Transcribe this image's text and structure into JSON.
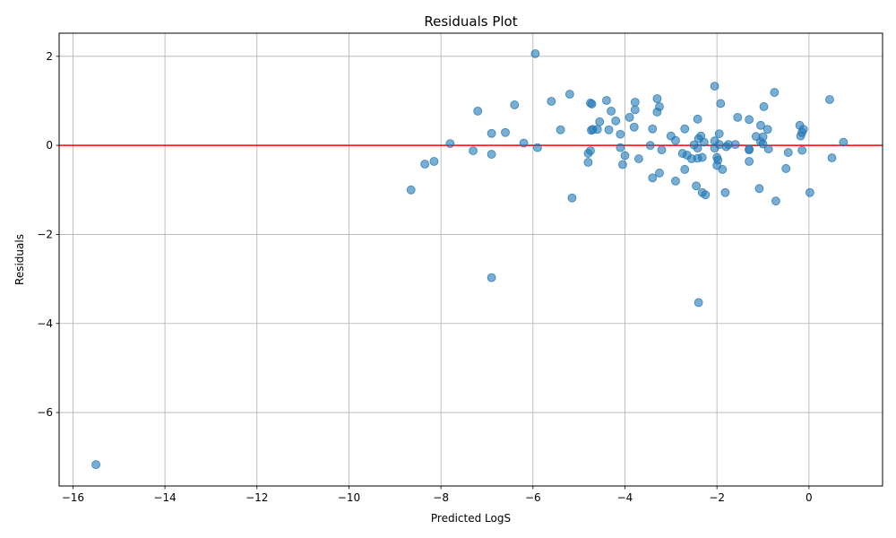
{
  "chart_data": {
    "type": "scatter",
    "title": "Residuals Plot",
    "xlabel": "Predicted LogS",
    "ylabel": "Residuals",
    "xlim": [
      -16.3,
      1.6
    ],
    "ylim": [
      -7.65,
      2.52
    ],
    "xticks": [
      -16,
      -14,
      -12,
      -10,
      -8,
      -6,
      -4,
      -2,
      0
    ],
    "yticks": [
      -6,
      -4,
      -2,
      0,
      2
    ],
    "grid": true,
    "point_color": "#1f77b4",
    "point_alpha": 0.6,
    "reference_line": {
      "y": 0,
      "color": "#ff0000"
    },
    "points": [
      [
        -15.5,
        -7.17
      ],
      [
        -8.65,
        -1.0
      ],
      [
        -8.35,
        -0.42
      ],
      [
        -8.15,
        -0.36
      ],
      [
        -7.8,
        0.04
      ],
      [
        -7.3,
        -0.12
      ],
      [
        -7.2,
        0.77
      ],
      [
        -6.9,
        0.27
      ],
      [
        -6.9,
        -0.2
      ],
      [
        -6.9,
        -2.97
      ],
      [
        -6.6,
        0.29
      ],
      [
        -6.4,
        0.91
      ],
      [
        -6.2,
        0.05
      ],
      [
        -5.95,
        2.06
      ],
      [
        -5.9,
        -0.05
      ],
      [
        -5.6,
        0.99
      ],
      [
        -5.4,
        0.35
      ],
      [
        -5.2,
        1.15
      ],
      [
        -5.15,
        -1.18
      ],
      [
        -4.8,
        -0.18
      ],
      [
        -4.8,
        -0.38
      ],
      [
        -4.75,
        -0.12
      ],
      [
        -4.75,
        0.95
      ],
      [
        -4.72,
        0.93
      ],
      [
        -4.73,
        0.34
      ],
      [
        -4.7,
        0.36
      ],
      [
        -4.6,
        0.36
      ],
      [
        -4.55,
        0.53
      ],
      [
        -4.4,
        1.01
      ],
      [
        -4.35,
        0.35
      ],
      [
        -4.3,
        0.77
      ],
      [
        -4.2,
        0.55
      ],
      [
        -4.1,
        0.25
      ],
      [
        -4.1,
        -0.05
      ],
      [
        -4.05,
        -0.43
      ],
      [
        -4.0,
        -0.23
      ],
      [
        -3.9,
        0.63
      ],
      [
        -3.8,
        0.41
      ],
      [
        -3.78,
        0.97
      ],
      [
        -3.78,
        0.8
      ],
      [
        -3.7,
        -0.3
      ],
      [
        -3.45,
        0.0
      ],
      [
        -3.4,
        0.37
      ],
      [
        -3.4,
        -0.73
      ],
      [
        -3.3,
        1.05
      ],
      [
        -3.3,
        0.75
      ],
      [
        -3.25,
        0.87
      ],
      [
        -3.25,
        -0.62
      ],
      [
        -3.2,
        -0.1
      ],
      [
        -3.0,
        0.21
      ],
      [
        -2.9,
        0.11
      ],
      [
        -2.9,
        -0.8
      ],
      [
        -2.75,
        -0.18
      ],
      [
        -2.7,
        0.37
      ],
      [
        -2.7,
        -0.54
      ],
      [
        -2.65,
        -0.22
      ],
      [
        -2.55,
        -0.3
      ],
      [
        -2.5,
        0.01
      ],
      [
        -2.45,
        -0.91
      ],
      [
        -2.42,
        -0.06
      ],
      [
        -2.42,
        -0.29
      ],
      [
        -2.42,
        0.59
      ],
      [
        -2.4,
        0.15
      ],
      [
        -2.4,
        -3.53
      ],
      [
        -2.35,
        0.21
      ],
      [
        -2.32,
        -0.27
      ],
      [
        -2.32,
        -1.06
      ],
      [
        -2.28,
        0.07
      ],
      [
        -2.25,
        -1.11
      ],
      [
        -2.05,
        -0.06
      ],
      [
        -2.05,
        0.1
      ],
      [
        -2.05,
        1.33
      ],
      [
        -2.0,
        -0.45
      ],
      [
        -2.0,
        -0.27
      ],
      [
        -1.98,
        -0.33
      ],
      [
        -1.95,
        0.26
      ],
      [
        -1.95,
        0.02
      ],
      [
        -1.92,
        0.94
      ],
      [
        -1.88,
        -0.54
      ],
      [
        -1.82,
        -1.06
      ],
      [
        -1.8,
        -0.03
      ],
      [
        -1.75,
        0.02
      ],
      [
        -1.6,
        0.02
      ],
      [
        -1.55,
        0.63
      ],
      [
        -1.3,
        0.58
      ],
      [
        -1.3,
        -0.08
      ],
      [
        -1.3,
        -0.1
      ],
      [
        -1.3,
        -0.36
      ],
      [
        -1.15,
        0.2
      ],
      [
        -1.08,
        -0.97
      ],
      [
        -1.05,
        0.45
      ],
      [
        -1.05,
        0.08
      ],
      [
        -1.0,
        0.19
      ],
      [
        -1.0,
        0.03
      ],
      [
        -0.98,
        0.87
      ],
      [
        -0.9,
        0.36
      ],
      [
        -0.88,
        -0.08
      ],
      [
        -0.75,
        1.19
      ],
      [
        -0.72,
        -1.25
      ],
      [
        -0.5,
        -0.52
      ],
      [
        -0.45,
        -0.16
      ],
      [
        -0.2,
        0.45
      ],
      [
        -0.18,
        0.21
      ],
      [
        -0.15,
        0.29
      ],
      [
        -0.15,
        -0.11
      ],
      [
        -0.12,
        0.36
      ],
      [
        0.02,
        -1.06
      ],
      [
        0.45,
        1.03
      ],
      [
        0.5,
        -0.28
      ],
      [
        0.75,
        0.07
      ]
    ]
  }
}
